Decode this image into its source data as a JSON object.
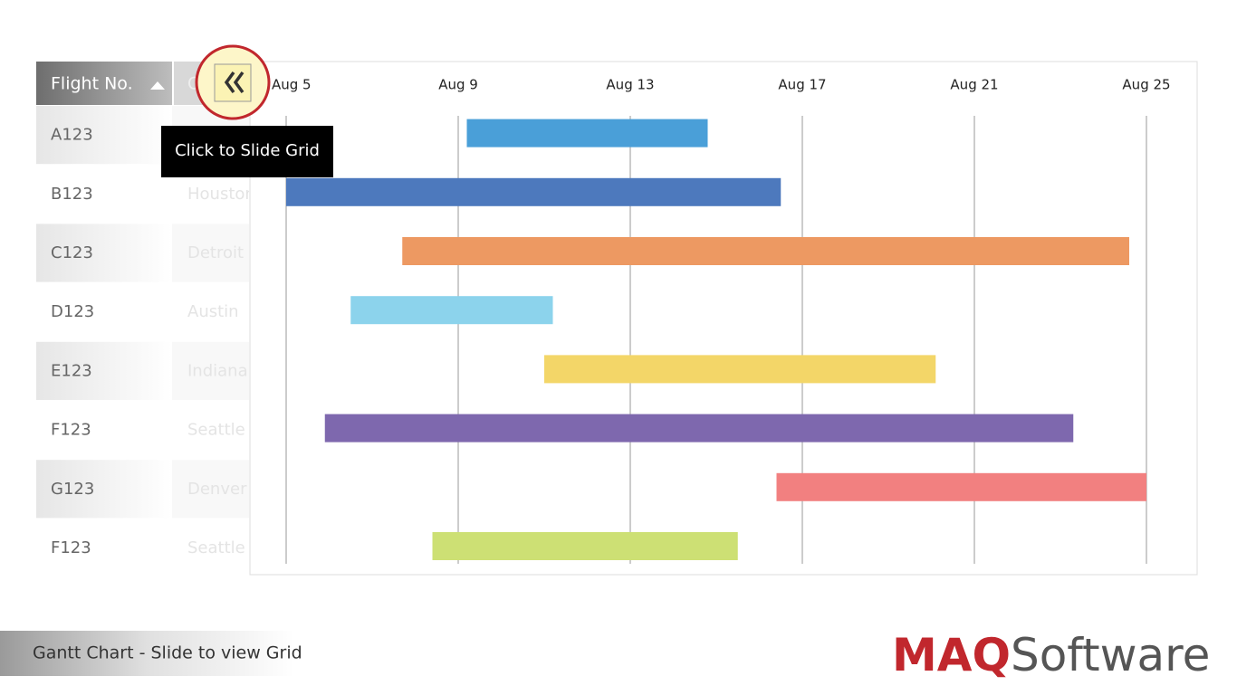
{
  "chart_data": {
    "type": "gantt",
    "categories": [
      "A123",
      "B123",
      "C123",
      "D123",
      "E123",
      "F123",
      "G123",
      "F123"
    ],
    "start": [
      9.2,
      5,
      7.7,
      6.5,
      11.0,
      5.9,
      16.4,
      8.4
    ],
    "end": [
      14.8,
      16.5,
      24.6,
      11.2,
      20.1,
      23.3,
      25,
      15.5
    ],
    "colors": [
      "#4a9fd8",
      "#4d79bd",
      "#ed9962",
      "#8cd3ec",
      "#f3d668",
      "#7e68ae",
      "#f28080",
      "#cde074"
    ],
    "xlim": [
      5,
      25
    ],
    "xticks": [
      {
        "value": 5,
        "label": "Aug 5"
      },
      {
        "value": 9,
        "label": "Aug 9"
      },
      {
        "value": 13,
        "label": "Aug 13"
      },
      {
        "value": 17,
        "label": "Aug 17"
      },
      {
        "value": 21,
        "label": "Aug 21"
      },
      {
        "value": 25,
        "label": "Aug 25"
      }
    ],
    "grid": true
  },
  "grid": {
    "headers": [
      "Flight No.",
      "City"
    ],
    "cities": [
      null,
      "Houston",
      "Detroit",
      "Austin",
      "Indianapolis",
      "Seattle",
      "Denver",
      "Seattle"
    ]
  },
  "tooltip": "Click to Slide Grid",
  "footer": "Gantt Chart - Slide to view Grid",
  "logo": {
    "brand": "MAQ",
    "suffix": "Software"
  }
}
